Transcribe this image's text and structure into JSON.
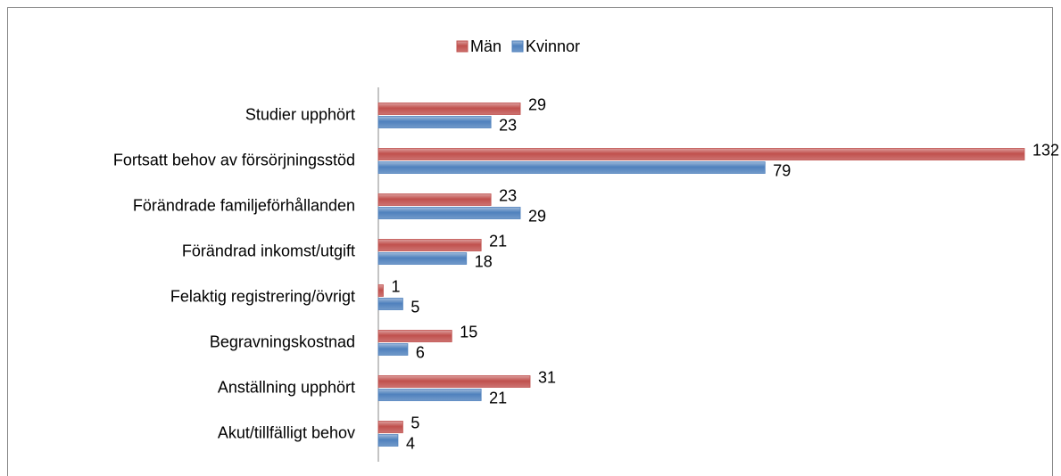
{
  "chart_data": {
    "type": "bar",
    "orientation": "horizontal",
    "categories": [
      "Studier upphört",
      "Fortsatt behov av försörjningsstöd",
      "Förändrade familjeförhållanden",
      "Förändrad inkomst/utgift",
      "Felaktig registrering/övrigt",
      "Begravningskostnad",
      "Anställning upphört",
      "Akut/tillfälligt behov"
    ],
    "series": [
      {
        "name": "Män",
        "color": "#c0504d",
        "values": [
          29,
          132,
          23,
          21,
          1,
          15,
          31,
          5
        ]
      },
      {
        "name": "Kvinnor",
        "color": "#4f81bd",
        "values": [
          23,
          79,
          29,
          18,
          5,
          6,
          21,
          4
        ]
      }
    ],
    "legend": "top"
  }
}
